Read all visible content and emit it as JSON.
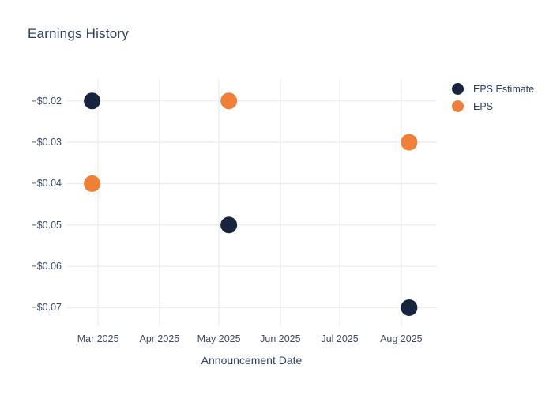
{
  "chart_data": {
    "type": "scatter",
    "title": "Earnings History",
    "xlabel": "Announcement Date",
    "ylabel": "",
    "grid": true,
    "legend_position": "right",
    "xlim": [
      "2025-02-13",
      "2025-08-19"
    ],
    "ylim": [
      -0.0745,
      -0.0147
    ],
    "x_ticks": [
      {
        "label": "Mar 2025",
        "date": "2025-03-01"
      },
      {
        "label": "Apr 2025",
        "date": "2025-04-01"
      },
      {
        "label": "May 2025",
        "date": "2025-05-01"
      },
      {
        "label": "Jun 2025",
        "date": "2025-06-01"
      },
      {
        "label": "Jul 2025",
        "date": "2025-07-01"
      },
      {
        "label": "Aug 2025",
        "date": "2025-08-01"
      }
    ],
    "y_ticks": [
      {
        "label": "−$0.02",
        "value": -0.02
      },
      {
        "label": "−$0.03",
        "value": -0.03
      },
      {
        "label": "−$0.04",
        "value": -0.04
      },
      {
        "label": "−$0.05",
        "value": -0.05
      },
      {
        "label": "−$0.06",
        "value": -0.06
      },
      {
        "label": "−$0.07",
        "value": -0.07
      }
    ],
    "series": [
      {
        "name": "EPS Estimate",
        "color": "#16243e",
        "points": [
          {
            "date": "2025-02-26",
            "value": -0.02
          },
          {
            "date": "2025-05-06",
            "value": -0.05
          },
          {
            "date": "2025-08-05",
            "value": -0.07
          }
        ]
      },
      {
        "name": "EPS",
        "color": "#f08037",
        "points": [
          {
            "date": "2025-02-26",
            "value": -0.04
          },
          {
            "date": "2025-05-06",
            "value": -0.02
          },
          {
            "date": "2025-08-05",
            "value": -0.03
          }
        ]
      }
    ],
    "colors": {
      "grid": "#e9edf4",
      "title_text": "#2d4160",
      "tick_text": "#3a4a66",
      "background": "#ffffff"
    }
  }
}
